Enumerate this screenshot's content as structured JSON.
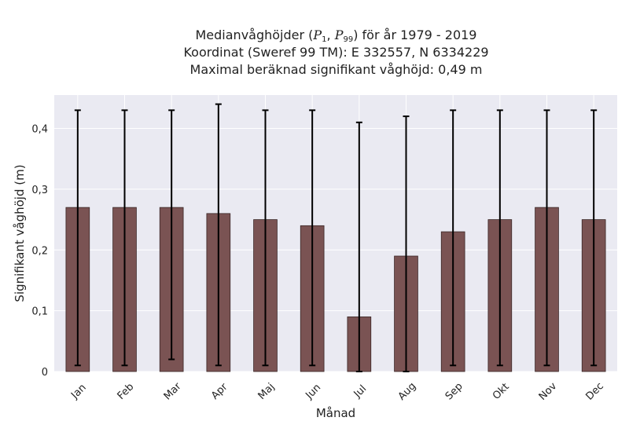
{
  "chart_data": {
    "type": "bar",
    "title": {
      "line1_before": "Medianvåghöjder (",
      "p1_symbol": "P",
      "p1_sub": "1",
      "separator": ", ",
      "p99_symbol": "P",
      "p99_sub": "99",
      "line1_after": ") för år 1979 - 2019",
      "line2": "Koordinat (Sweref 99 TM): E 332557, N 6334229",
      "line3": "Maximal beräknad signifikant våghöjd: 0,49 m"
    },
    "xlabel": "Månad",
    "ylabel": "Signifikant våghöjd (m)",
    "categories": [
      "Jan",
      "Feb",
      "Mar",
      "Apr",
      "Maj",
      "Jun",
      "Jul",
      "Aug",
      "Sep",
      "Okt",
      "Nov",
      "Dec"
    ],
    "values": [
      0.27,
      0.27,
      0.27,
      0.26,
      0.25,
      0.24,
      0.09,
      0.19,
      0.23,
      0.25,
      0.27,
      0.25
    ],
    "error_low": [
      0.01,
      0.01,
      0.02,
      0.01,
      0.01,
      0.01,
      0.0,
      0.0,
      0.01,
      0.01,
      0.01,
      0.01
    ],
    "error_high": [
      0.43,
      0.43,
      0.43,
      0.44,
      0.43,
      0.43,
      0.41,
      0.42,
      0.43,
      0.43,
      0.43,
      0.43
    ],
    "ylim": [
      0,
      0.455
    ],
    "yticks": [
      0,
      0.1,
      0.2,
      0.3,
      0.4
    ],
    "ytick_labels": [
      "0",
      "0,1",
      "0,2",
      "0,3",
      "0,4"
    ],
    "grid": true,
    "colors": {
      "bar": "#7a5353",
      "bar_edge": "#3a2626",
      "errorbar": "#000000",
      "plot_background": "#eaeaf2",
      "grid": "#ffffff"
    }
  }
}
